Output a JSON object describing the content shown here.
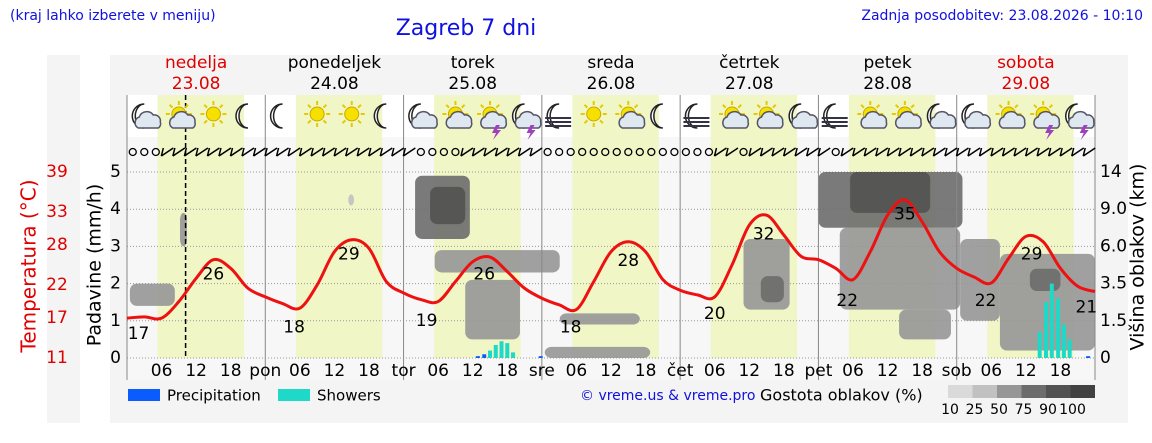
{
  "header": {
    "note": "(kraj lahko izberete v meniju)",
    "updated": "Zadnja posodobitev: 23.08.2026 - 10:10"
  },
  "chart_data": {
    "type": "meteogram",
    "title": "Zagreb 7 dni",
    "days": [
      {
        "name": "nedelja",
        "date": "23.08",
        "color": "#e00000"
      },
      {
        "name": "ponedeljek",
        "date": "24.08",
        "color": "#000000"
      },
      {
        "name": "torek",
        "date": "25.08",
        "color": "#000000"
      },
      {
        "name": "sreda",
        "date": "26.08",
        "color": "#000000"
      },
      {
        "name": "četrtek",
        "date": "27.08",
        "color": "#000000"
      },
      {
        "name": "petek",
        "date": "28.08",
        "color": "#000000"
      },
      {
        "name": "sobota",
        "date": "29.08",
        "color": "#e00000"
      }
    ],
    "xlim": [
      0,
      168
    ],
    "xticks": [
      {
        "value": 6,
        "label": "06"
      },
      12,
      18,
      {
        "value": 24,
        "label": "pon"
      },
      {
        "value": 30,
        "label": "06"
      },
      {
        "value": 36,
        "label": "12"
      },
      {
        "value": 42,
        "label": "18"
      },
      {
        "value": 48,
        "label": "tor"
      },
      {
        "value": 54,
        "label": "06"
      },
      {
        "value": 60,
        "label": "12"
      },
      {
        "value": 66,
        "label": "18"
      },
      {
        "value": 72,
        "label": "sre"
      },
      {
        "value": 78,
        "label": "06"
      },
      {
        "value": 84,
        "label": "12"
      },
      {
        "value": 90,
        "label": "18"
      },
      {
        "value": 96,
        "label": "čet"
      },
      {
        "value": 102,
        "label": "06"
      },
      {
        "value": 108,
        "label": "12"
      },
      {
        "value": 114,
        "label": "18"
      },
      {
        "value": 120,
        "label": "pet"
      },
      {
        "value": 126,
        "label": "06"
      },
      {
        "value": 132,
        "label": "12"
      },
      {
        "value": 138,
        "label": "18"
      },
      {
        "value": 144,
        "label": "sob"
      },
      {
        "value": 150,
        "label": "06"
      },
      {
        "value": 156,
        "label": "12"
      },
      {
        "value": 162,
        "label": "18"
      }
    ],
    "now": 10.17,
    "daylight": [
      5.3,
      20.3
    ],
    "y_label": "Padavine (mm/h)",
    "ylim": [
      0,
      5
    ],
    "yticks": [
      0,
      1,
      2,
      3,
      4,
      5
    ],
    "grid": true,
    "temp_axis": {
      "label": "Temperatura (°C)",
      "color": "#e00000",
      "lim": [
        11,
        39
      ],
      "ticks": [
        39,
        33,
        28,
        22,
        17,
        11
      ]
    },
    "cloud_axis": {
      "label": "Višina oblakov (km)",
      "ticks": [
        14,
        {
          "value": 9,
          "label": "9.0"
        },
        {
          "value": 6,
          "label": "6.0"
        },
        3.5,
        1.5,
        0
      ]
    },
    "temperature": {
      "color": "#ee1111",
      "x": [
        0,
        3,
        6,
        9,
        12,
        15,
        18,
        21,
        24,
        27,
        30,
        33,
        36,
        39,
        42,
        45,
        48,
        51,
        54,
        57,
        60,
        63,
        66,
        69,
        72,
        75,
        78,
        81,
        84,
        87,
        90,
        93,
        96,
        99,
        102,
        105,
        108,
        111,
        114,
        117,
        120,
        123,
        126,
        129,
        132,
        135,
        138,
        141,
        144,
        147,
        150,
        153,
        156,
        159,
        162,
        165,
        168
      ],
      "values": [
        17,
        17.2,
        17,
        19.5,
        23,
        25.8,
        24.5,
        21.5,
        20.2,
        19.2,
        18.5,
        22,
        27,
        28.8,
        27.5,
        22.5,
        20.8,
        19.8,
        19.5,
        22.5,
        25.5,
        26.2,
        24,
        21.5,
        20,
        19,
        18.3,
        22.5,
        27,
        28.5,
        27,
        22.8,
        21.2,
        20.5,
        20.2,
        25,
        31,
        32.5,
        29.5,
        26.3,
        25.8,
        24.5,
        22.8,
        27,
        32.5,
        34.8,
        31.5,
        27,
        24.5,
        23.2,
        22.3,
        26,
        29.3,
        28.5,
        24.5,
        21.8,
        21
      ]
    },
    "temp_labels": [
      {
        "x": 2,
        "value": 17
      },
      {
        "x": 15,
        "value": 26
      },
      {
        "x": 29,
        "value": 18
      },
      {
        "x": 38.5,
        "value": 29
      },
      {
        "x": 52,
        "value": 19
      },
      {
        "x": 62,
        "value": 26
      },
      {
        "x": 77,
        "value": 18
      },
      {
        "x": 87,
        "value": 28
      },
      {
        "x": 102,
        "value": 20
      },
      {
        "x": 110.5,
        "value": 32
      },
      {
        "x": 125,
        "value": 22
      },
      {
        "x": 135,
        "value": 35
      },
      {
        "x": 149,
        "value": 22
      },
      {
        "x": 157,
        "value": 29
      },
      {
        "x": 166.5,
        "value": 21
      }
    ],
    "series": [
      {
        "name": "Precipitation",
        "color": "#0a5cff",
        "x": [
          60.9,
          62,
          71.8,
          166.8
        ],
        "values": [
          0.05,
          0.1,
          0.05,
          0.05
        ]
      },
      {
        "name": "Showers",
        "color": "#1ed8c8",
        "x": [
          63,
          64,
          65,
          66,
          67,
          158.4,
          159.5,
          160.5,
          161.6,
          162.6,
          163.6
        ],
        "values": [
          0.2,
          0.35,
          0.45,
          0.4,
          0.15,
          0.7,
          1.5,
          2.0,
          1.6,
          0.9,
          0.5
        ]
      }
    ],
    "clouds": {
      "label": "Gostota oblakov (%)",
      "scale": [
        10,
        25,
        50,
        75,
        90,
        100
      ],
      "cells": [
        {
          "x0": 0.5,
          "x1": 8.3,
          "y0": 1.4,
          "y1": 2.0,
          "density": 50
        },
        {
          "x0": 9.2,
          "x1": 10.4,
          "y0": 3.0,
          "y1": 3.9,
          "density": 50
        },
        {
          "x0": 38.4,
          "x1": 39.4,
          "y0": 4.1,
          "y1": 4.4,
          "density": 25
        },
        {
          "x0": 53.4,
          "x1": 75.1,
          "y0": 2.3,
          "y1": 2.9,
          "density": 50
        },
        {
          "x0": 50,
          "x1": 59.5,
          "y0": 3.2,
          "y1": 4.9,
          "density": 75
        },
        {
          "x0": 52.6,
          "x1": 58.7,
          "y0": 3.6,
          "y1": 4.6,
          "density": 90
        },
        {
          "x0": 58.7,
          "x1": 68.2,
          "y0": 0.5,
          "y1": 2.1,
          "density": 50
        },
        {
          "x0": 75.1,
          "x1": 89,
          "y0": 0.9,
          "y1": 1.2,
          "density": 50
        },
        {
          "x0": 72.5,
          "x1": 90.8,
          "y0": 0,
          "y1": 0.3,
          "density": 50
        },
        {
          "x0": 107,
          "x1": 115,
          "y0": 1.3,
          "y1": 3.2,
          "density": 50
        },
        {
          "x0": 110,
          "x1": 114,
          "y0": 1.5,
          "y1": 2.2,
          "density": 75
        },
        {
          "x0": 123.7,
          "x1": 144.6,
          "y0": 1.3,
          "y1": 3.5,
          "density": 50
        },
        {
          "x0": 134,
          "x1": 143,
          "y0": 0.5,
          "y1": 1.3,
          "density": 50
        },
        {
          "x0": 120,
          "x1": 145,
          "y0": 3.5,
          "y1": 5.0,
          "density": 75
        },
        {
          "x0": 125.5,
          "x1": 139.4,
          "y0": 3.9,
          "y1": 5.0,
          "density": 90
        },
        {
          "x0": 144.6,
          "x1": 151.5,
          "y0": 1.0,
          "y1": 3.2,
          "density": 50
        },
        {
          "x0": 151.5,
          "x1": 168,
          "y0": 0.2,
          "y1": 2.8,
          "density": 50
        },
        {
          "x0": 156.7,
          "x1": 162,
          "y0": 1.8,
          "y1": 2.4,
          "density": 75
        }
      ]
    },
    "credit": "© vreme.us & vreme.pro"
  }
}
